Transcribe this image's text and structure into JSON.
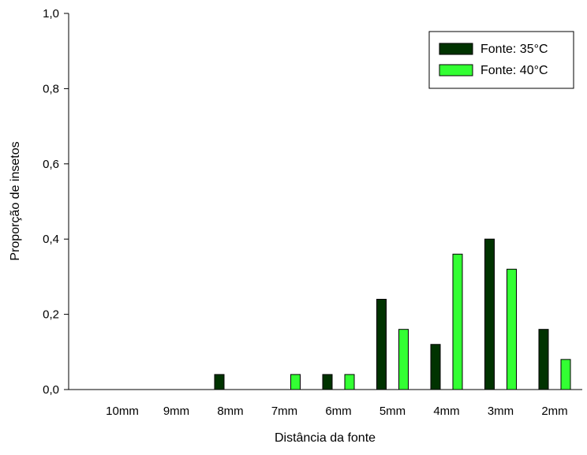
{
  "chart_data": {
    "type": "bar",
    "title": "",
    "xlabel": "Distância da fonte",
    "ylabel": "Proporção de insetos",
    "categories": [
      "10mm",
      "9mm",
      "8mm",
      "7mm",
      "6mm",
      "5mm",
      "4mm",
      "3mm",
      "2mm"
    ],
    "series": [
      {
        "name": "Fonte: 35°C",
        "color": "#003300",
        "values": [
          0,
          0,
          0.04,
          0,
          0.04,
          0.24,
          0.12,
          0.4,
          0.16
        ]
      },
      {
        "name": "Fonte: 40°C",
        "color": "#33ff33",
        "values": [
          0,
          0,
          0,
          0.04,
          0.04,
          0.16,
          0.36,
          0.32,
          0.08
        ]
      }
    ],
    "ylim": [
      0,
      1.0
    ],
    "yticks": [
      "0,0",
      "0,2",
      "0,4",
      "0,6",
      "0,8",
      "1,0"
    ],
    "grid": false,
    "legend_position": "top-right"
  }
}
